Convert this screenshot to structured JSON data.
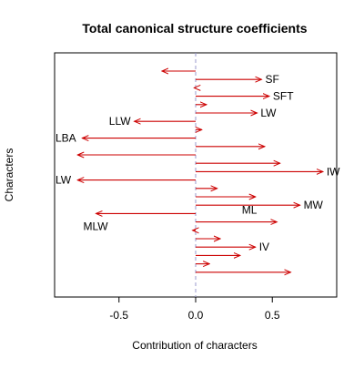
{
  "chart_data": {
    "type": "arrow",
    "title": "Total canonical structure coefficients",
    "xlabel": "Contribution of characters",
    "ylabel": "Characters",
    "xlim": [
      -0.92,
      0.92
    ],
    "xticks": [
      -0.5,
      0.0,
      0.5
    ],
    "xtick_labels": [
      "-0.5",
      "0.0",
      "0.5"
    ],
    "zero_line": true,
    "arrow_color": "#cc0000",
    "zero_line_color": "#9999cc",
    "series": [
      {
        "value": -0.22,
        "label": ""
      },
      {
        "value": 0.43,
        "label": "SF"
      },
      {
        "value": -0.01,
        "label": ""
      },
      {
        "value": 0.48,
        "label": "SFT"
      },
      {
        "value": 0.07,
        "label": ""
      },
      {
        "value": 0.4,
        "label": "LW"
      },
      {
        "value": -0.4,
        "label": "LLW"
      },
      {
        "value": 0.04,
        "label": ""
      },
      {
        "value": -0.74,
        "label": "LBA"
      },
      {
        "value": 0.45,
        "label": ""
      },
      {
        "value": -0.77,
        "label": ""
      },
      {
        "value": 0.55,
        "label": ""
      },
      {
        "value": 0.83,
        "label": "IW"
      },
      {
        "value": -0.77,
        "label": "LW"
      },
      {
        "value": 0.14,
        "label": ""
      },
      {
        "value": 0.39,
        "label": ""
      },
      {
        "value": 0.68,
        "label": "MW"
      },
      {
        "value": -0.65,
        "label": "MLW"
      },
      {
        "value": 0.53,
        "label": ""
      },
      {
        "value": -0.02,
        "label": ""
      },
      {
        "value": 0.16,
        "label": ""
      },
      {
        "value": 0.39,
        "label": "IV"
      },
      {
        "value": 0.29,
        "label": ""
      },
      {
        "value": 0.09,
        "label": ""
      },
      {
        "value": 0.62,
        "label": ""
      }
    ],
    "extra_labels": [
      {
        "text": "ML",
        "x": 0.4,
        "row": 16.6
      }
    ]
  }
}
